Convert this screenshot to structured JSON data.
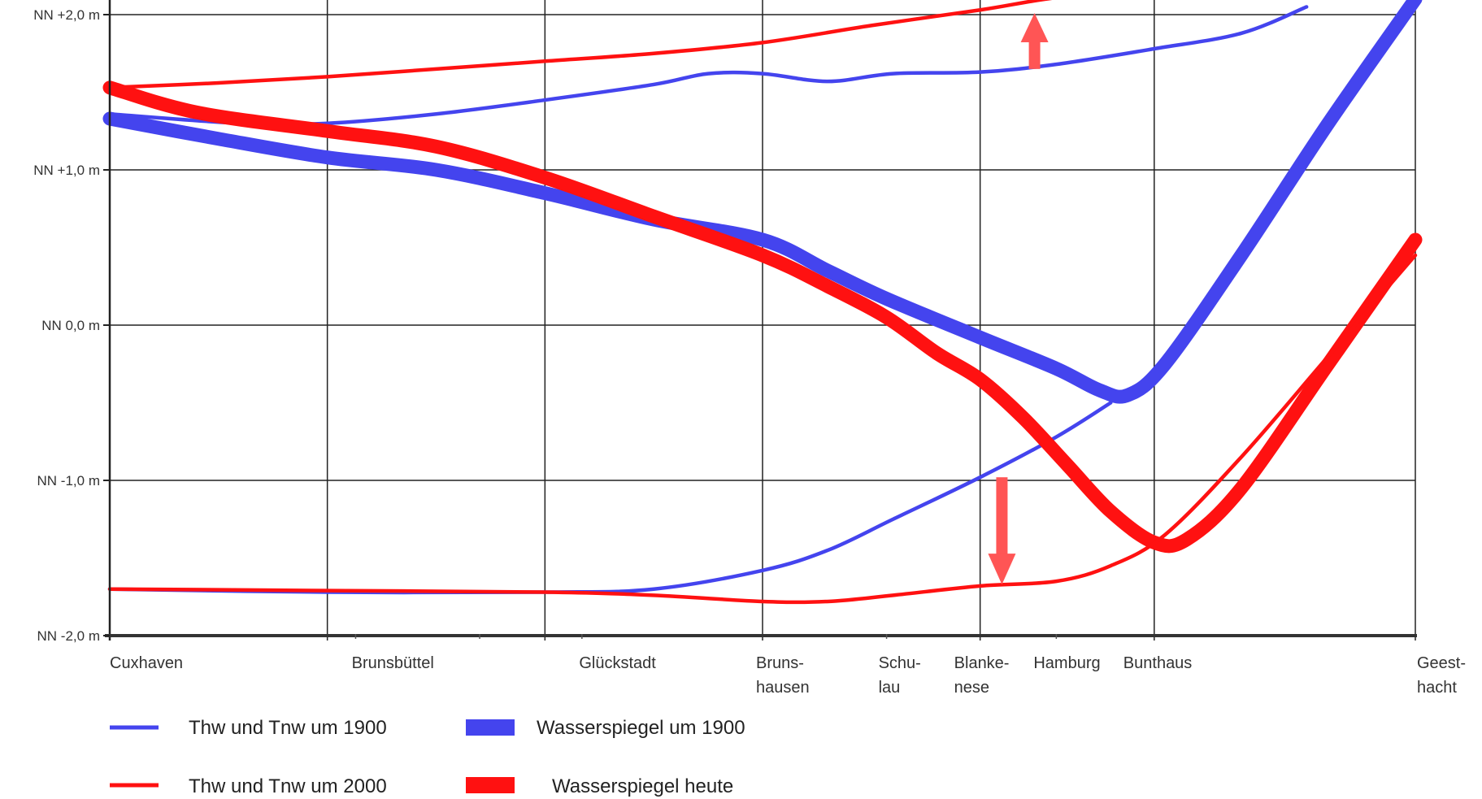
{
  "chart_data": {
    "type": "line",
    "title": "",
    "xlabel": "",
    "ylabel": "",
    "ylim": [
      -2.0,
      2.0
    ],
    "grid": true,
    "legend_position": "bottom-left",
    "y_ticks": [
      {
        "value": 2.0,
        "label": "NN +2,0 m"
      },
      {
        "value": 1.0,
        "label": "NN +1,0 m"
      },
      {
        "value": 0.0,
        "label": "NN 0,0 m"
      },
      {
        "value": -1.0,
        "label": "NN -1,0 m"
      },
      {
        "value": -2.0,
        "label": "NN -2,0 m"
      }
    ],
    "stations": [
      {
        "name": "Cuxhaven",
        "lines": [
          "Cuxhaven"
        ]
      },
      {
        "name": "Brunsbüttel",
        "lines": [
          "Brunsbüttel"
        ]
      },
      {
        "name": "Glückstadt",
        "lines": [
          "Glückstadt"
        ]
      },
      {
        "name": "Brunshausen",
        "lines": [
          "Bruns-",
          "hausen"
        ]
      },
      {
        "name": "Schulau",
        "lines": [
          "Schu-",
          "lau"
        ]
      },
      {
        "name": "Blankenese",
        "lines": [
          "Blanke-",
          "nese"
        ]
      },
      {
        "name": "Hamburg",
        "lines": [
          "Hamburg"
        ]
      },
      {
        "name": "Bunthaus",
        "lines": [
          "Bunthaus"
        ]
      },
      {
        "name": "Geesthacht",
        "lines": [
          "Geest-",
          "hacht"
        ]
      }
    ],
    "station_positions": [
      0,
      1,
      2,
      3,
      3.57,
      4.0,
      4.35,
      4.8,
      6.0
    ],
    "series": [
      {
        "name": "Thw und Tnw um 1900",
        "color": "#4444ee",
        "style": "thin",
        "points": [
          [
            0,
            1.36
          ],
          [
            0.6,
            1.3
          ],
          [
            1,
            1.3
          ],
          [
            1.5,
            1.36
          ],
          [
            2,
            1.45
          ],
          [
            2.5,
            1.55
          ],
          [
            2.75,
            1.62
          ],
          [
            3,
            1.62
          ],
          [
            3.3,
            1.57
          ],
          [
            3.6,
            1.62
          ],
          [
            4.0,
            1.63
          ],
          [
            4.35,
            1.68
          ],
          [
            4.8,
            1.78
          ],
          [
            5.2,
            1.88
          ],
          [
            5.5,
            2.05
          ]
        ]
      },
      {
        "name": "Thw und Tnw um 1900",
        "color": "#4444ee",
        "style": "thin",
        "points": [
          [
            0,
            -1.7
          ],
          [
            1,
            -1.72
          ],
          [
            2,
            -1.72
          ],
          [
            2.5,
            -1.7
          ],
          [
            3,
            -1.58
          ],
          [
            3.3,
            -1.45
          ],
          [
            3.6,
            -1.25
          ],
          [
            4.0,
            -0.98
          ],
          [
            4.35,
            -0.72
          ],
          [
            4.6,
            -0.5
          ]
        ]
      },
      {
        "name": "Thw und Tnw um 2000",
        "color": "#ff1111",
        "style": "thin",
        "points": [
          [
            0,
            1.53
          ],
          [
            0.5,
            1.56
          ],
          [
            1,
            1.6
          ],
          [
            1.5,
            1.65
          ],
          [
            2,
            1.7
          ],
          [
            2.5,
            1.75
          ],
          [
            3,
            1.82
          ],
          [
            3.5,
            1.93
          ],
          [
            4.0,
            2.03
          ],
          [
            4.3,
            2.1
          ],
          [
            4.7,
            2.17
          ]
        ]
      },
      {
        "name": "Thw und Tnw um 2000",
        "color": "#ff1111",
        "style": "thin",
        "points": [
          [
            0,
            -1.7
          ],
          [
            1,
            -1.71
          ],
          [
            2,
            -1.72
          ],
          [
            2.5,
            -1.74
          ],
          [
            3,
            -1.78
          ],
          [
            3.3,
            -1.78
          ],
          [
            3.6,
            -1.74
          ],
          [
            4.0,
            -1.68
          ],
          [
            4.35,
            -1.65
          ],
          [
            4.6,
            -1.55
          ],
          [
            4.85,
            -1.35
          ],
          [
            5.2,
            -0.85
          ],
          [
            5.6,
            -0.2
          ],
          [
            6.0,
            0.45
          ]
        ]
      },
      {
        "name": "Wasserspiegel um 1900",
        "color": "#4444ee",
        "style": "thick",
        "points": [
          [
            0,
            1.33
          ],
          [
            0.5,
            1.2
          ],
          [
            1,
            1.08
          ],
          [
            1.5,
            1.0
          ],
          [
            2,
            0.85
          ],
          [
            2.5,
            0.68
          ],
          [
            3,
            0.55
          ],
          [
            3.3,
            0.35
          ],
          [
            3.57,
            0.17
          ],
          [
            4.0,
            -0.08
          ],
          [
            4.35,
            -0.28
          ],
          [
            4.55,
            -0.42
          ],
          [
            4.68,
            -0.45
          ],
          [
            4.85,
            -0.25
          ],
          [
            5.2,
            0.45
          ],
          [
            5.6,
            1.3
          ],
          [
            6.0,
            2.1
          ]
        ]
      },
      {
        "name": "Wasserspiegel heute",
        "color": "#ff1111",
        "style": "thick",
        "points": [
          [
            0,
            1.53
          ],
          [
            0.4,
            1.37
          ],
          [
            1,
            1.25
          ],
          [
            1.5,
            1.15
          ],
          [
            2,
            0.95
          ],
          [
            2.5,
            0.7
          ],
          [
            3,
            0.45
          ],
          [
            3.3,
            0.25
          ],
          [
            3.57,
            0.05
          ],
          [
            3.8,
            -0.18
          ],
          [
            4.0,
            -0.35
          ],
          [
            4.2,
            -0.6
          ],
          [
            4.4,
            -0.9
          ],
          [
            4.6,
            -1.2
          ],
          [
            4.8,
            -1.4
          ],
          [
            4.95,
            -1.38
          ],
          [
            5.2,
            -1.05
          ],
          [
            5.6,
            -0.25
          ],
          [
            6.0,
            0.55
          ]
        ]
      }
    ],
    "annotations": [
      {
        "type": "arrow",
        "direction": "up",
        "x": 4.25,
        "from": 1.65,
        "to": 2.0,
        "color": "#ff5555"
      },
      {
        "type": "arrow",
        "direction": "down",
        "x": 4.1,
        "from": -0.98,
        "to": -1.65,
        "color": "#ff5555"
      }
    ],
    "legend": [
      {
        "label": "Thw und Tnw um 1900",
        "color": "#4444ee",
        "style": "thin"
      },
      {
        "label": "Wasserspiegel um 1900",
        "color": "#4444ee",
        "style": "thick"
      },
      {
        "label": "Thw und Tnw um 2000",
        "color": "#ff1111",
        "style": "thin"
      },
      {
        "label": "Wasserspiegel heute",
        "color": "#ff1111",
        "style": "thick"
      }
    ]
  }
}
